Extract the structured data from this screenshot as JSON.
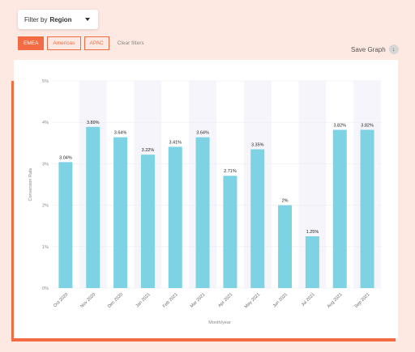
{
  "filter": {
    "prefix": "Filter by",
    "value": "Region"
  },
  "chips": [
    {
      "label": "EMEA",
      "active": true
    },
    {
      "label": "Americas",
      "active": false
    },
    {
      "label": "APAC",
      "active": false
    }
  ],
  "clear_label": "Clear filters",
  "save_graph_label": "Save Graph",
  "icons": {
    "dropdown": "caret-down-icon",
    "download": "download-icon"
  },
  "colors": {
    "accent": "#f26b43",
    "bar": "#7dd3e3",
    "band": "#f5f5fb"
  },
  "chart_data": {
    "type": "bar",
    "title": "",
    "xlabel": "Month/year",
    "ylabel": "Conversion Rate",
    "categories": [
      "Oct 2020",
      "Nov 2020",
      "Dec 2020",
      "Jan 2021",
      "Feb 2021",
      "Mar 2021",
      "Apr 2021",
      "May 2021",
      "Jun 2021",
      "Jul 2021",
      "Aug 2021",
      "Sep 2021"
    ],
    "values": [
      3.04,
      3.89,
      3.64,
      3.22,
      3.41,
      3.64,
      2.71,
      3.35,
      2,
      1.25,
      3.82,
      3.82
    ],
    "value_labels": [
      "3.04%",
      "3.89%",
      "3.64%",
      "3.22%",
      "3.41%",
      "3.64%",
      "2.71%",
      "3.35%",
      "2%",
      "1.25%",
      "3.82%",
      "3.82%"
    ],
    "y_ticks": [
      "0%",
      "1%",
      "2%",
      "3%",
      "4%",
      "5%"
    ],
    "ylim": [
      0,
      5
    ],
    "grid": true
  }
}
